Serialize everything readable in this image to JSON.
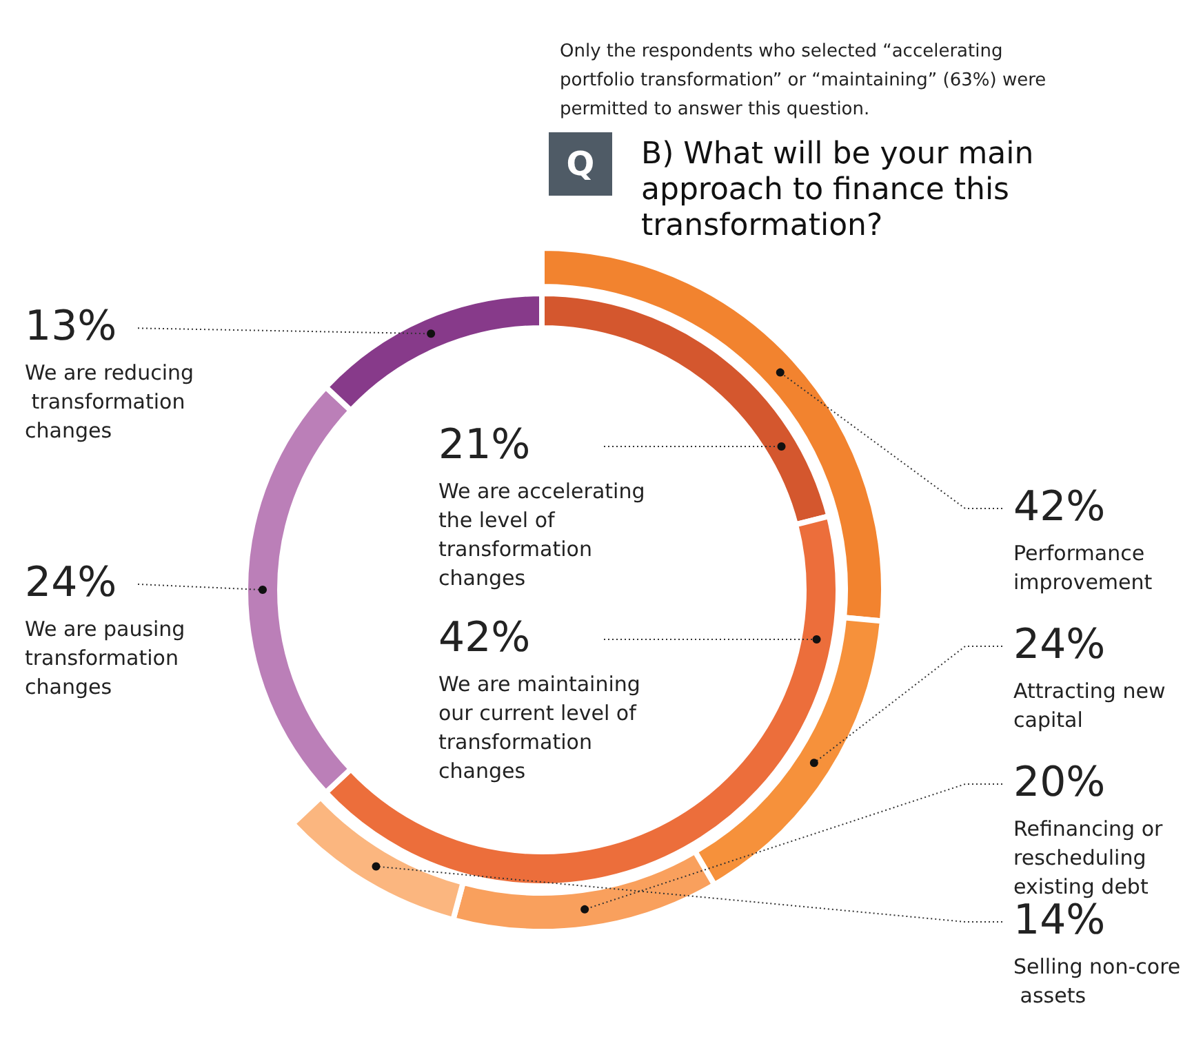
{
  "chart_data": [
    {
      "type": "donut",
      "categories": [
        "We are accelerating the level of transformation changes",
        "We are maintaining our current level of transformation changes",
        "We are pausing transformation changes",
        "We are reducing transformation changes"
      ],
      "values": [
        21,
        42,
        24,
        13
      ],
      "value_labels": [
        "21%",
        "42%",
        "24%",
        "13%"
      ],
      "colors": [
        "#d4572e",
        "#ec6e3b",
        "#bb7fb8",
        "#873a8a"
      ]
    },
    {
      "type": "donut",
      "title": "B) What will be your main approach to finance this transformation?",
      "subtitle": "Only the respondents who selected “accelerating portfolio transformation” or “maintaining” (63%) were permitted to answer this question.",
      "annotations": [
        "Q"
      ],
      "categories": [
        "Performance improvement",
        "Attracting new capital",
        "Refinancing or rescheduling existing debt",
        "Selling non-core assets"
      ],
      "values": [
        42,
        24,
        20,
        14
      ],
      "value_labels": [
        "42%",
        "24%",
        "20%",
        "14%"
      ],
      "colors": [
        "#f2832f",
        "#f6913b",
        "#f9a05d",
        "#fbb67f"
      ]
    }
  ]
}
